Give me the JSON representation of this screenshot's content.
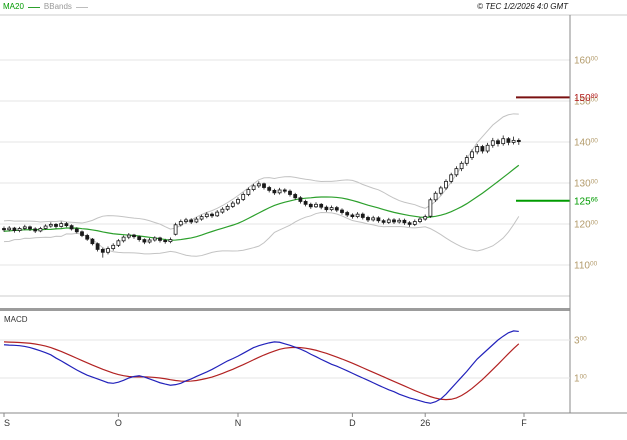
{
  "header": {
    "legend_ma20": "MA20",
    "legend_bbands": "BBands",
    "copyright": "© TEC 1/2/2026 4:0 GMT"
  },
  "colors": {
    "grid": "#e4e4e4",
    "frame": "#cccccc",
    "axis": "#888888",
    "separator": "#9c9c9c",
    "bands": "#c3c3c3",
    "ma": "#2ca02c",
    "candle": "#1a1a1a",
    "macd_line": "#2222bb",
    "macd_signal": "#b22222",
    "scale_text": "#b39b6b",
    "month_text": "#333333"
  },
  "chart_data": {
    "type": "candlestick",
    "title": "",
    "price_axis": {
      "ticks": [
        160,
        150,
        140,
        130,
        120,
        110
      ],
      "tick_sup": "00",
      "tick_format": "superscript-cents",
      "range": [
        99,
        171
      ]
    },
    "overlays": {
      "ma20_period": 20,
      "bollinger": {
        "period": 20,
        "mult": 2
      }
    },
    "levels": [
      {
        "value": 150.89,
        "display_main": "150",
        "display_sup": "89",
        "role": "resistance",
        "color": "#7a1010",
        "label_color": "#b01818"
      },
      {
        "value": 125.66,
        "display_main": "125",
        "display_sup": "66",
        "role": "support",
        "color": "#009b00",
        "label_color": "#009b00"
      }
    ],
    "x_ticks": [
      {
        "label": "S",
        "index": 0
      },
      {
        "label": "O",
        "index": 22
      },
      {
        "label": "N",
        "index": 45
      },
      {
        "label": "D",
        "index": 67
      },
      {
        "label": "26",
        "index": 81
      },
      {
        "label": "F",
        "index": 100
      }
    ],
    "pre_closes": [
      116.0,
      117.5,
      115.8,
      118.2,
      116.5,
      119.0,
      117.2,
      120.1,
      118.0,
      119.5,
      117.0,
      118.8,
      116.2,
      119.8,
      117.5,
      120.5,
      118.5,
      119.2,
      117.8,
      118.9
    ],
    "candles_ohlc": [
      [
        118.9,
        119.4,
        118.1,
        118.6
      ],
      [
        118.6,
        119.5,
        118.2,
        119.0
      ],
      [
        119.0,
        119.3,
        117.9,
        118.4
      ],
      [
        118.4,
        119.3,
        118.0,
        118.9
      ],
      [
        118.9,
        119.8,
        118.5,
        119.3
      ],
      [
        119.3,
        119.6,
        118.3,
        118.8
      ],
      [
        118.8,
        119.2,
        117.8,
        118.3
      ],
      [
        118.3,
        119.3,
        118.0,
        118.9
      ],
      [
        118.9,
        119.9,
        118.6,
        119.5
      ],
      [
        119.5,
        120.4,
        119.1,
        119.9
      ],
      [
        119.9,
        120.2,
        118.9,
        119.4
      ],
      [
        119.4,
        120.6,
        119.1,
        120.1
      ],
      [
        120.1,
        120.5,
        119.2,
        119.6
      ],
      [
        119.6,
        119.9,
        118.4,
        118.8
      ],
      [
        118.8,
        119.2,
        117.7,
        118.1
      ],
      [
        118.1,
        118.4,
        116.8,
        117.2
      ],
      [
        117.2,
        117.6,
        115.9,
        116.3
      ],
      [
        116.3,
        116.6,
        114.8,
        115.2
      ],
      [
        115.2,
        115.5,
        113.3,
        113.8
      ],
      [
        113.8,
        114.2,
        111.8,
        113.1
      ],
      [
        113.1,
        114.5,
        112.6,
        114.0
      ],
      [
        114.0,
        115.3,
        113.5,
        114.8
      ],
      [
        114.8,
        116.3,
        114.4,
        115.9
      ],
      [
        115.9,
        117.2,
        115.5,
        116.8
      ],
      [
        116.8,
        117.8,
        116.3,
        117.3
      ],
      [
        117.3,
        117.6,
        116.4,
        116.9
      ],
      [
        116.9,
        117.2,
        115.7,
        116.2
      ],
      [
        116.2,
        116.5,
        115.1,
        115.6
      ],
      [
        115.6,
        116.6,
        115.2,
        116.1
      ],
      [
        116.1,
        117.0,
        115.7,
        116.6
      ],
      [
        116.6,
        116.9,
        115.5,
        116.0
      ],
      [
        116.0,
        116.4,
        115.2,
        115.7
      ],
      [
        115.7,
        116.7,
        115.3,
        116.2
      ],
      [
        117.5,
        120.3,
        117.2,
        119.8
      ],
      [
        119.8,
        121.1,
        119.4,
        120.6
      ],
      [
        120.6,
        121.5,
        120.1,
        121.0
      ],
      [
        121.0,
        121.4,
        120.0,
        120.5
      ],
      [
        120.5,
        121.7,
        120.2,
        121.2
      ],
      [
        121.2,
        122.3,
        120.8,
        121.8
      ],
      [
        121.8,
        122.9,
        121.4,
        122.4
      ],
      [
        122.4,
        122.8,
        121.5,
        122.0
      ],
      [
        122.0,
        123.4,
        121.7,
        122.9
      ],
      [
        122.9,
        124.1,
        122.5,
        123.6
      ],
      [
        123.6,
        124.8,
        123.2,
        124.3
      ],
      [
        124.3,
        125.6,
        123.9,
        125.1
      ],
      [
        125.1,
        126.5,
        124.7,
        126.0
      ],
      [
        126.0,
        127.7,
        125.6,
        127.2
      ],
      [
        127.2,
        128.9,
        126.8,
        128.4
      ],
      [
        128.4,
        129.8,
        128.0,
        129.3
      ],
      [
        129.3,
        130.4,
        128.8,
        129.8
      ],
      [
        129.8,
        130.1,
        128.4,
        128.9
      ],
      [
        128.9,
        129.3,
        127.7,
        128.2
      ],
      [
        128.2,
        128.6,
        127.1,
        127.6
      ],
      [
        127.6,
        128.8,
        127.2,
        128.3
      ],
      [
        128.3,
        128.7,
        127.5,
        128.0
      ],
      [
        128.0,
        128.4,
        126.7,
        127.2
      ],
      [
        127.2,
        127.6,
        125.9,
        126.4
      ],
      [
        126.4,
        126.8,
        125.0,
        125.5
      ],
      [
        125.5,
        125.9,
        124.3,
        124.8
      ],
      [
        124.8,
        125.2,
        123.7,
        124.2
      ],
      [
        124.2,
        125.3,
        123.9,
        124.8
      ],
      [
        124.8,
        125.1,
        123.6,
        124.1
      ],
      [
        124.1,
        124.5,
        123.0,
        123.5
      ],
      [
        123.5,
        124.5,
        123.1,
        124.0
      ],
      [
        124.0,
        124.4,
        122.9,
        123.4
      ],
      [
        123.4,
        123.8,
        122.3,
        122.8
      ],
      [
        122.8,
        123.2,
        121.7,
        122.2
      ],
      [
        122.2,
        122.6,
        121.3,
        121.8
      ],
      [
        121.8,
        122.9,
        121.4,
        122.4
      ],
      [
        122.4,
        122.8,
        121.1,
        121.6
      ],
      [
        121.6,
        122.0,
        120.5,
        121.0
      ],
      [
        121.0,
        122.0,
        120.6,
        121.5
      ],
      [
        121.5,
        121.9,
        120.3,
        120.8
      ],
      [
        120.8,
        121.2,
        119.9,
        120.4
      ],
      [
        120.4,
        121.5,
        120.0,
        121.0
      ],
      [
        121.0,
        121.4,
        120.0,
        120.5
      ],
      [
        120.5,
        121.4,
        120.1,
        120.9
      ],
      [
        120.9,
        121.3,
        119.8,
        120.3
      ],
      [
        120.3,
        120.7,
        119.3,
        119.9
      ],
      [
        119.9,
        121.1,
        119.5,
        120.6
      ],
      [
        120.6,
        121.7,
        120.2,
        121.2
      ],
      [
        121.2,
        122.3,
        120.8,
        121.8
      ],
      [
        121.9,
        126.4,
        121.5,
        125.9
      ],
      [
        125.9,
        128.0,
        125.4,
        127.5
      ],
      [
        127.5,
        129.3,
        127.0,
        128.8
      ],
      [
        128.8,
        130.9,
        128.3,
        130.4
      ],
      [
        130.4,
        132.5,
        129.9,
        132.0
      ],
      [
        132.0,
        134.1,
        131.5,
        133.5
      ],
      [
        133.5,
        135.3,
        132.9,
        134.8
      ],
      [
        134.8,
        136.8,
        134.2,
        136.2
      ],
      [
        136.2,
        138.2,
        135.6,
        137.6
      ],
      [
        137.6,
        139.5,
        137.0,
        138.9
      ],
      [
        138.9,
        139.3,
        137.2,
        137.8
      ],
      [
        137.8,
        139.8,
        137.3,
        139.2
      ],
      [
        139.2,
        141.0,
        138.6,
        140.3
      ],
      [
        140.3,
        140.8,
        138.9,
        139.6
      ],
      [
        139.6,
        141.6,
        139.1,
        140.8
      ],
      [
        140.8,
        141.2,
        139.2,
        139.9
      ],
      [
        139.9,
        141.3,
        139.4,
        140.4
      ],
      [
        140.4,
        140.9,
        139.3,
        140.1
      ]
    ],
    "macd_pane": {
      "label": "MACD",
      "axis_ticks": [
        3,
        1
      ],
      "axis_sup": "00",
      "range": [
        -0.8,
        4.5
      ],
      "macd": [
        2.75,
        2.73,
        2.72,
        2.7,
        2.66,
        2.6,
        2.52,
        2.43,
        2.33,
        2.22,
        2.05,
        1.9,
        1.74,
        1.58,
        1.42,
        1.28,
        1.15,
        1.05,
        0.95,
        0.85,
        0.75,
        0.72,
        0.78,
        0.88,
        1.0,
        1.08,
        1.12,
        1.05,
        0.95,
        0.85,
        0.75,
        0.68,
        0.62,
        0.65,
        0.72,
        0.85,
        0.95,
        1.08,
        1.2,
        1.32,
        1.45,
        1.6,
        1.75,
        1.9,
        2.02,
        2.15,
        2.3,
        2.45,
        2.6,
        2.7,
        2.78,
        2.85,
        2.9,
        2.88,
        2.8,
        2.72,
        2.62,
        2.52,
        2.4,
        2.25,
        2.12,
        1.98,
        1.85,
        1.72,
        1.62,
        1.5,
        1.38,
        1.25,
        1.12,
        1.0,
        0.88,
        0.75,
        0.62,
        0.5,
        0.38,
        0.28,
        0.15,
        0.05,
        -0.05,
        -0.12,
        -0.2,
        -0.28,
        -0.33,
        -0.25,
        -0.1,
        0.15,
        0.45,
        0.75,
        1.05,
        1.35,
        1.68,
        2.0,
        2.25,
        2.5,
        2.75,
        3.0,
        3.2,
        3.38,
        3.48,
        3.45
      ],
      "signal": [
        2.9,
        2.89,
        2.88,
        2.87,
        2.85,
        2.83,
        2.79,
        2.74,
        2.68,
        2.6,
        2.5,
        2.4,
        2.28,
        2.16,
        2.04,
        1.92,
        1.8,
        1.68,
        1.57,
        1.46,
        1.36,
        1.26,
        1.18,
        1.12,
        1.08,
        1.06,
        1.06,
        1.06,
        1.05,
        1.03,
        1.0,
        0.96,
        0.91,
        0.87,
        0.84,
        0.83,
        0.84,
        0.87,
        0.92,
        0.98,
        1.05,
        1.14,
        1.24,
        1.35,
        1.46,
        1.58,
        1.7,
        1.83,
        1.96,
        2.09,
        2.21,
        2.32,
        2.42,
        2.51,
        2.57,
        2.6,
        2.61,
        2.6,
        2.57,
        2.52,
        2.46,
        2.38,
        2.3,
        2.2,
        2.1,
        2.0,
        1.89,
        1.78,
        1.66,
        1.54,
        1.42,
        1.3,
        1.18,
        1.06,
        0.94,
        0.82,
        0.7,
        0.58,
        0.46,
        0.34,
        0.23,
        0.12,
        0.02,
        -0.06,
        -0.12,
        -0.14,
        -0.12,
        -0.05,
        0.08,
        0.25,
        0.45,
        0.68,
        0.92,
        1.18,
        1.45,
        1.72,
        2.0,
        2.28,
        2.55,
        2.8
      ]
    }
  }
}
